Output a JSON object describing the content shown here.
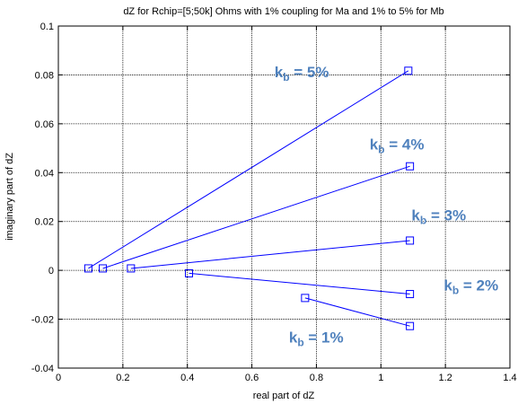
{
  "chart_data": {
    "type": "line",
    "title": "dZ for Rchip=[5;50k] Ohms with 1% coupling for Ma and 1% to 5% for Mb",
    "xlabel": "real part of dZ",
    "ylabel": "imaginary part of dZ",
    "xlim": [
      0,
      1.4
    ],
    "ylim": [
      -0.04,
      0.1
    ],
    "xticks": [
      0,
      0.2,
      0.4,
      0.6,
      0.8,
      1,
      1.2,
      1.4
    ],
    "xtick_labels": [
      "0",
      "0.2",
      "0.4",
      "0.6",
      "0.8",
      "1",
      "1.2",
      "1.4"
    ],
    "yticks": [
      -0.04,
      -0.02,
      0,
      0.02,
      0.04,
      0.06,
      0.08,
      0.1
    ],
    "ytick_labels": [
      "-0.04",
      "-0.02",
      "0",
      "0.02",
      "0.04",
      "0.06",
      "0.08",
      "0.1"
    ],
    "grid": true,
    "line_color": "#0000ff",
    "marker": "square",
    "annotation_color": "#4f81bd",
    "series": [
      {
        "x": [
          0.765,
          1.09
        ],
        "y": [
          -0.0113,
          -0.0228
        ]
      },
      {
        "x": [
          0.405,
          1.09
        ],
        "y": [
          -0.0012,
          -0.0097
        ]
      },
      {
        "x": [
          0.225,
          1.09
        ],
        "y": [
          0.0008,
          0.0122
        ]
      },
      {
        "x": [
          0.138,
          1.09
        ],
        "y": [
          0.0008,
          0.0426
        ]
      },
      {
        "x": [
          0.093,
          1.085
        ],
        "y": [
          0.0008,
          0.0817
        ]
      }
    ],
    "annotations": [
      {
        "base": "k",
        "sub": "b",
        "text": " = 5%",
        "x": 0.67,
        "y": 0.079
      },
      {
        "base": "k",
        "sub": "b",
        "text": " = 4%",
        "x": 0.965,
        "y": 0.0495
      },
      {
        "base": "k",
        "sub": "b",
        "text": " = 3%",
        "x": 1.095,
        "y": 0.0205
      },
      {
        "base": "k",
        "sub": "b",
        "text": " = 2%",
        "x": 1.195,
        "y": -0.0083
      },
      {
        "base": "k",
        "sub": "b",
        "text": " = 1%",
        "x": 0.715,
        "y": -0.0295
      }
    ]
  }
}
